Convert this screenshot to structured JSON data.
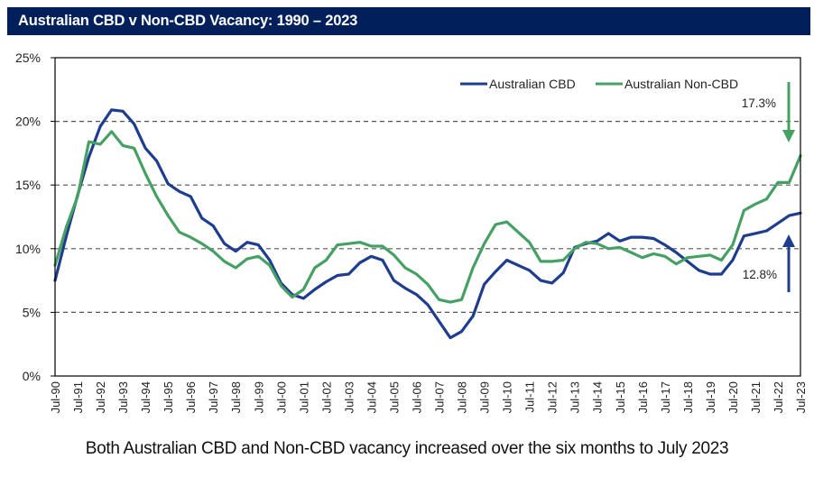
{
  "header": {
    "title": "Australian CBD v Non-CBD Vacancy: 1990 – 2023"
  },
  "caption": "Both Australian CBD and Non-CBD vacancy increased over the six months to July 2023",
  "chart_data": {
    "type": "line",
    "title": "Australian CBD v Non-CBD Vacancy: 1990 – 2023",
    "xlabel": "",
    "ylabel": "",
    "ylim": [
      0,
      25
    ],
    "yticks": [
      0,
      5,
      10,
      15,
      20,
      25
    ],
    "ytick_labels": [
      "0%",
      "5%",
      "10%",
      "15%",
      "20%",
      "25%"
    ],
    "grid": "horizontal dashed",
    "legend_position": "top-right",
    "x_frequency": "semi-annual (Jan/Jul)",
    "xtick_labels": [
      "Jul-90",
      "Jul-91",
      "Jul-92",
      "Jul-93",
      "Jul-94",
      "Jul-95",
      "Jul-96",
      "Jul-97",
      "Jul-98",
      "Jul-99",
      "Jul-00",
      "Jul-01",
      "Jul-02",
      "Jul-03",
      "Jul-04",
      "Jul-05",
      "Jul-06",
      "Jul-07",
      "Jul-08",
      "Jul-09",
      "Jul-10",
      "Jul-11",
      "Jul-12",
      "Jul-13",
      "Jul-14",
      "Jul-15",
      "Jul-16",
      "Jul-17",
      "Jul-18",
      "Jul-19",
      "Jul-20",
      "Jul-21",
      "Jul-22",
      "Jul-23"
    ],
    "x": [
      "Jul-90",
      "Jan-91",
      "Jul-91",
      "Jan-92",
      "Jul-92",
      "Jan-93",
      "Jul-93",
      "Jan-94",
      "Jul-94",
      "Jan-95",
      "Jul-95",
      "Jan-96",
      "Jul-96",
      "Jan-97",
      "Jul-97",
      "Jan-98",
      "Jul-98",
      "Jan-99",
      "Jul-99",
      "Jan-00",
      "Jul-00",
      "Jan-01",
      "Jul-01",
      "Jan-02",
      "Jul-02",
      "Jan-03",
      "Jul-03",
      "Jan-04",
      "Jul-04",
      "Jan-05",
      "Jul-05",
      "Jan-06",
      "Jul-06",
      "Jan-07",
      "Jul-07",
      "Jan-08",
      "Jul-08",
      "Jan-09",
      "Jul-09",
      "Jan-10",
      "Jul-10",
      "Jan-11",
      "Jul-11",
      "Jan-12",
      "Jul-12",
      "Jan-13",
      "Jul-13",
      "Jan-14",
      "Jul-14",
      "Jan-15",
      "Jul-15",
      "Jan-16",
      "Jul-16",
      "Jan-17",
      "Jul-17",
      "Jan-18",
      "Jul-18",
      "Jan-19",
      "Jul-19",
      "Jan-20",
      "Jul-20",
      "Jan-21",
      "Jul-21",
      "Jan-22",
      "Jul-22",
      "Jan-23",
      "Jul-23"
    ],
    "series": [
      {
        "name": "Australian CBD",
        "color": "#1f3d8f",
        "values": [
          7.5,
          11.0,
          14.2,
          17.2,
          19.6,
          20.9,
          20.8,
          19.8,
          17.9,
          16.9,
          15.1,
          14.5,
          14.1,
          12.4,
          11.8,
          10.4,
          9.8,
          10.5,
          10.3,
          9.1,
          7.3,
          6.4,
          6.1,
          6.8,
          7.4,
          7.9,
          8.0,
          8.9,
          9.4,
          9.1,
          7.5,
          6.9,
          6.4,
          5.6,
          4.3,
          3.0,
          3.5,
          4.7,
          7.2,
          8.2,
          9.1,
          8.7,
          8.3,
          7.5,
          7.3,
          8.1,
          10.1,
          10.4,
          10.6,
          11.2,
          10.6,
          10.9,
          10.9,
          10.8,
          10.3,
          9.7,
          9.0,
          8.3,
          8.0,
          8.0,
          9.1,
          11.0,
          11.2,
          11.4,
          12.0,
          12.6,
          12.8
        ]
      },
      {
        "name": "Australian Non-CBD",
        "color": "#46a064",
        "values": [
          8.7,
          11.7,
          14.1,
          18.4,
          18.2,
          19.2,
          18.1,
          17.9,
          15.9,
          14.1,
          12.6,
          11.3,
          10.9,
          10.4,
          9.8,
          9.0,
          8.5,
          9.2,
          9.4,
          8.7,
          7.1,
          6.2,
          6.8,
          8.5,
          9.1,
          10.3,
          10.4,
          10.5,
          10.2,
          10.2,
          9.5,
          8.5,
          8.0,
          7.2,
          6.0,
          5.8,
          6.0,
          8.5,
          10.4,
          11.9,
          12.1,
          11.3,
          10.5,
          9.0,
          9.0,
          9.1,
          10.0,
          10.5,
          10.4,
          10.0,
          10.1,
          9.7,
          9.3,
          9.6,
          9.4,
          8.8,
          9.3,
          9.4,
          9.5,
          9.1,
          10.3,
          13.0,
          13.5,
          13.9,
          15.2,
          15.2,
          17.3
        ]
      }
    ],
    "annotations": [
      {
        "text": "17.3%",
        "series": "Australian Non-CBD",
        "arrow": "down",
        "color": "#46a064"
      },
      {
        "text": "12.8%",
        "series": "Australian CBD",
        "arrow": "up",
        "color": "#1f3d8f"
      }
    ]
  }
}
